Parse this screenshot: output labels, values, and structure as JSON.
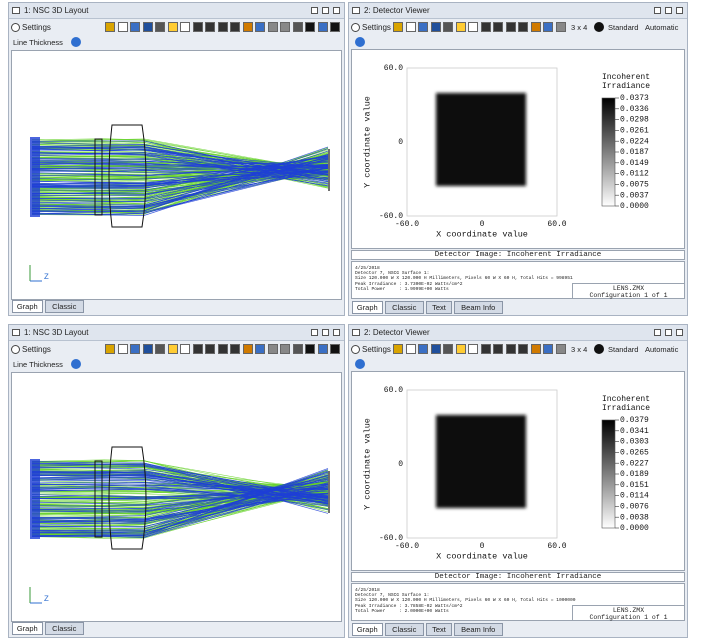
{
  "panels": [
    {
      "layout": {
        "title": "1: NSC 3D Layout",
        "settings": "Settings",
        "line_thickness": "Line Thickness",
        "axis_label": "Z",
        "tabs": [
          "Graph",
          "Classic"
        ]
      },
      "detector": {
        "title": "2: Detector Viewer",
        "settings": "Settings",
        "grid_size": "3 x 4",
        "standard": "Standard",
        "automatic": "Automatic",
        "x_label": "X coordinate value",
        "y_label": "Y coordinate value",
        "xticks": [
          "-60.0",
          "0",
          "60.0"
        ],
        "yticks": [
          "60.0",
          "0",
          "-60.0"
        ],
        "legend_title": [
          "Incoherent",
          "Irradiance"
        ],
        "scale": [
          "0.0373",
          "0.0336",
          "0.0298",
          "0.0261",
          "0.0224",
          "0.0187",
          "0.0149",
          "0.0112",
          "0.0075",
          "0.0037",
          "0.0000"
        ],
        "image_title": "Detector Image: Incoherent Irradiance",
        "info": [
          "4/25/2018",
          "Detector 7, NSCG Surface 1:",
          "Size 120.000 W X 120.000 H Millimeters, Pixels 60 W X 60 H, Total Hits = 998951",
          "Peak Irradiance : 3.7300E-02 Watts/cm^2",
          "Total Power     : 1.9999E+00 Watts"
        ],
        "lens": "LENS.ZMX",
        "config": "Configuration 1 of 1",
        "tabs": [
          "Graph",
          "Classic",
          "Text",
          "Beam Info"
        ]
      }
    },
    {
      "layout": {
        "title": "1: NSC 3D Layout",
        "settings": "Settings",
        "line_thickness": "Line Thickness",
        "axis_label": "Z",
        "tabs": [
          "Graph",
          "Classic"
        ]
      },
      "detector": {
        "title": "2: Detector Viewer",
        "settings": "Settings",
        "grid_size": "3 x 4",
        "standard": "Standard",
        "automatic": "Automatic",
        "x_label": "X coordinate value",
        "y_label": "Y coordinate value",
        "xticks": [
          "-60.0",
          "0",
          "60.0"
        ],
        "yticks": [
          "60.0",
          "0",
          "-60.0"
        ],
        "legend_title": [
          "Incoherent",
          "Irradiance"
        ],
        "scale": [
          "0.0379",
          "0.0341",
          "0.0303",
          "0.0265",
          "0.0227",
          "0.0189",
          "0.0151",
          "0.0114",
          "0.0076",
          "0.0038",
          "0.0000"
        ],
        "image_title": "Detector Image: Incoherent Irradiance",
        "info": [
          "4/25/2018",
          "Detector 7, NSCG Surface 1:",
          "Size 120.000 W X 120.000 H Millimeters, Pixels 60 W X 60 H, Total Hits = 1000000",
          "Peak Irradiance : 3.7858E-02 Watts/cm^2",
          "Total Power     : 2.0000E+00 Watts"
        ],
        "lens": "LENS.ZMX",
        "config": "Configuration 1 of 1",
        "tabs": [
          "Graph",
          "Classic",
          "Text",
          "Beam Info"
        ]
      }
    }
  ]
}
